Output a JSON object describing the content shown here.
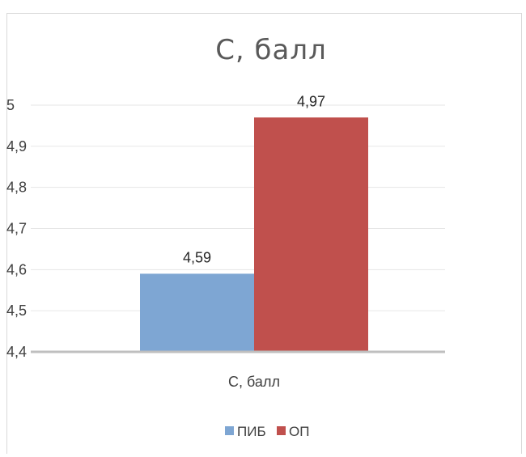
{
  "chart_data": {
    "type": "bar",
    "title": "С, балл",
    "categories": [
      "С, балл"
    ],
    "series": [
      {
        "name": "ПИБ",
        "values": [
          4.59
        ],
        "color": "#7EA6D3",
        "label": "4,59"
      },
      {
        "name": "ОП",
        "values": [
          4.97
        ],
        "color": "#C0504D",
        "label": "4,97"
      }
    ],
    "ylim": [
      4.4,
      5.0
    ],
    "yticks": [
      {
        "value": 5.0,
        "label": "5"
      },
      {
        "value": 4.9,
        "label": "4,9"
      },
      {
        "value": 4.8,
        "label": "4,8"
      },
      {
        "value": 4.7,
        "label": "4,7"
      },
      {
        "value": 4.6,
        "label": "4,6"
      },
      {
        "value": 4.5,
        "label": "4,5"
      },
      {
        "value": 4.4,
        "label": "4,4"
      }
    ],
    "grid": true,
    "legend_position": "bottom"
  }
}
